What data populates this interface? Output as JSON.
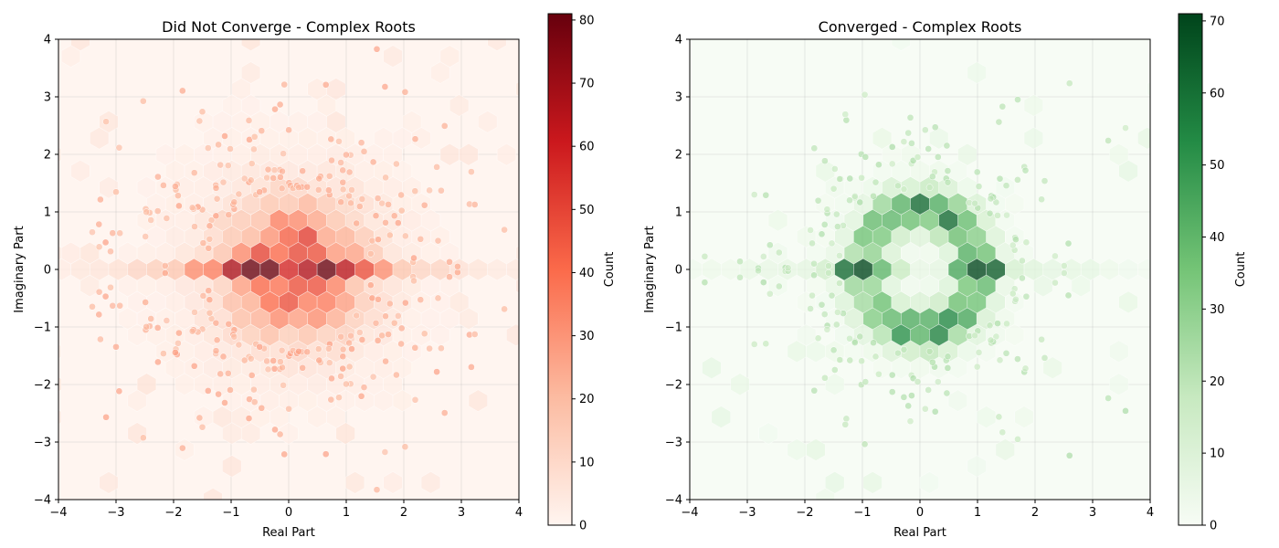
{
  "chart_data": [
    {
      "type": "hexbin",
      "title": "Did Not Converge - Complex Roots",
      "xlabel": "Real Part",
      "ylabel": "Imaginary Part",
      "xlim": [
        -4,
        4
      ],
      "ylim": [
        -4,
        4
      ],
      "xticks": [
        "−4",
        "−3",
        "−2",
        "−1",
        "0",
        "1",
        "2",
        "3",
        "4"
      ],
      "yticks": [
        "−4",
        "−3",
        "−2",
        "−1",
        "0",
        "1",
        "2",
        "3",
        "4"
      ],
      "grid": true,
      "colormap": "Reds",
      "colors": {
        "low": "#fff5f0",
        "mid": "#fb6a4a",
        "high": "#67000d"
      },
      "colorbar": {
        "label": "Count",
        "min": 0,
        "max": 81,
        "ticks": [
          "0",
          "10",
          "20",
          "30",
          "40",
          "50",
          "60",
          "70",
          "80"
        ]
      },
      "peak_cells": [
        {
          "x": -1.0,
          "y": 0.0,
          "count": 78
        },
        {
          "x": 1.0,
          "y": 0.0,
          "count": 81
        },
        {
          "x": -0.5,
          "y": 0.0,
          "count": 70
        },
        {
          "x": 0.5,
          "y": 0.0,
          "count": 68
        },
        {
          "x": 0.5,
          "y": 1.2,
          "count": 55
        },
        {
          "x": 0.5,
          "y": -1.2,
          "count": 55
        },
        {
          "x": -0.3,
          "y": 0.9,
          "count": 48
        },
        {
          "x": -0.3,
          "y": -0.9,
          "count": 48
        }
      ]
    },
    {
      "type": "hexbin",
      "title": "Converged - Complex Roots",
      "xlabel": "Real Part",
      "ylabel": "Imaginary Part",
      "xlim": [
        -4,
        4
      ],
      "ylim": [
        -4,
        4
      ],
      "xticks": [
        "−4",
        "−3",
        "−2",
        "−1",
        "0",
        "1",
        "2",
        "3",
        "4"
      ],
      "yticks": [
        "−4",
        "−3",
        "−2",
        "−1",
        "0",
        "1",
        "2",
        "3",
        "4"
      ],
      "grid": true,
      "colormap": "Greens",
      "colors": {
        "low": "#f7fcf5",
        "mid": "#74c476",
        "high": "#00441b"
      },
      "colorbar": {
        "label": "Count",
        "min": 0,
        "max": 71,
        "ticks": [
          "0",
          "10",
          "20",
          "30",
          "40",
          "50",
          "60",
          "70"
        ]
      },
      "peak_cells": [
        {
          "x": -1.2,
          "y": 0.0,
          "count": 68
        },
        {
          "x": 1.0,
          "y": 0.0,
          "count": 71
        },
        {
          "x": -0.3,
          "y": 1.0,
          "count": 52
        },
        {
          "x": 0.6,
          "y": 1.0,
          "count": 50
        },
        {
          "x": -0.3,
          "y": -1.0,
          "count": 52
        },
        {
          "x": 0.6,
          "y": -1.0,
          "count": 50
        }
      ]
    }
  ]
}
